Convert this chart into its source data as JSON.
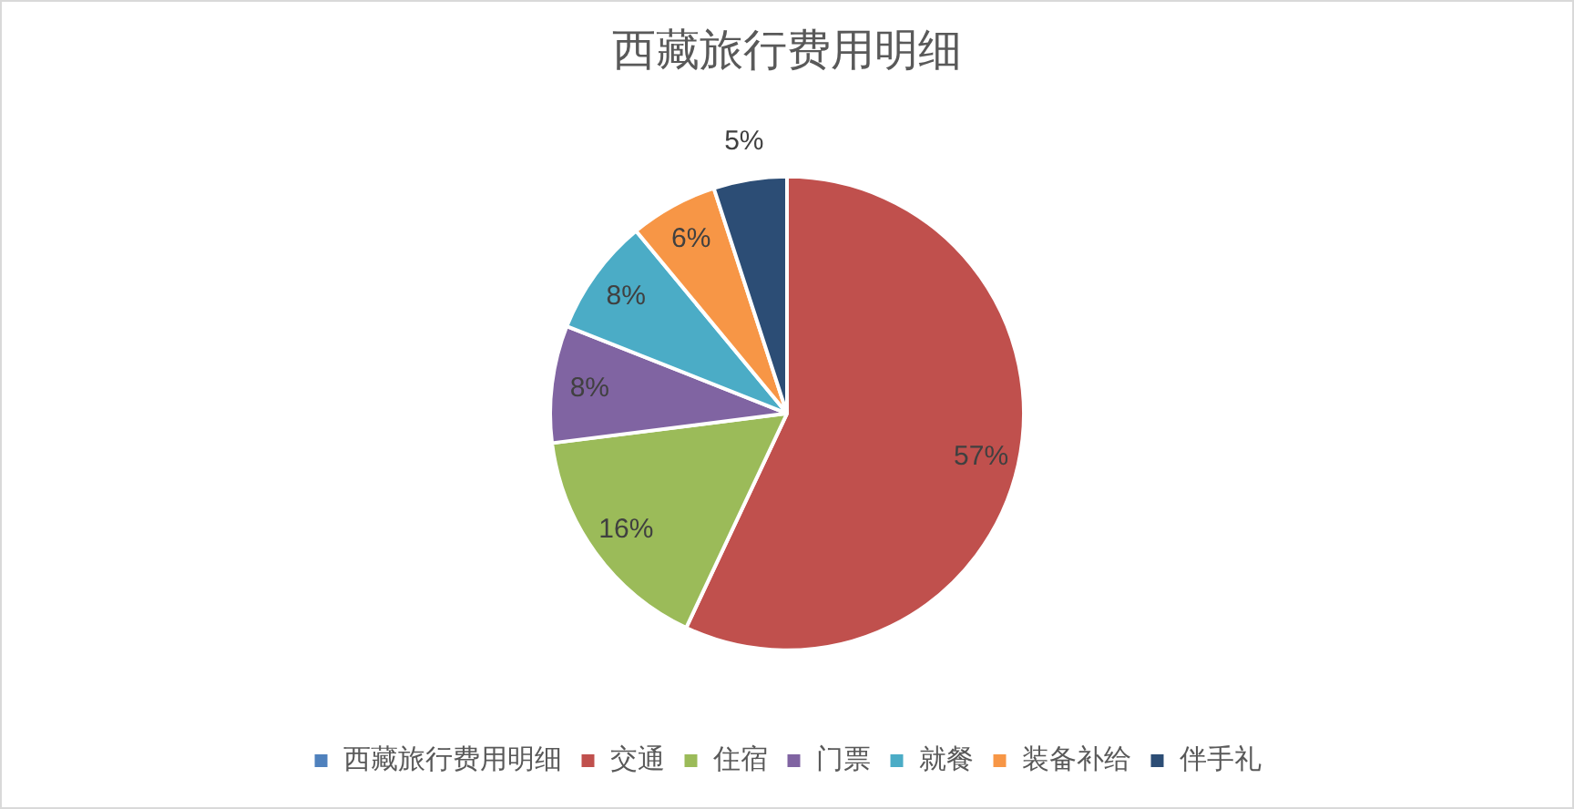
{
  "chart_data": {
    "type": "pie",
    "title": "西藏旅行费用明细",
    "categories": [
      "西藏旅行费用明细",
      "交通",
      "住宿",
      "门票",
      "就餐",
      "装备补给",
      "伴手礼"
    ],
    "values": [
      0,
      57,
      16,
      8,
      8,
      6,
      5
    ],
    "colors": [
      "#4f81bd",
      "#c0504d",
      "#9bbb59",
      "#8064a2",
      "#4bacc6",
      "#f79646",
      "#2c4d75"
    ],
    "value_labels": [
      null,
      "57%",
      "16%",
      "8%",
      "8%",
      "6%",
      "5%"
    ],
    "legend": "bottom"
  }
}
